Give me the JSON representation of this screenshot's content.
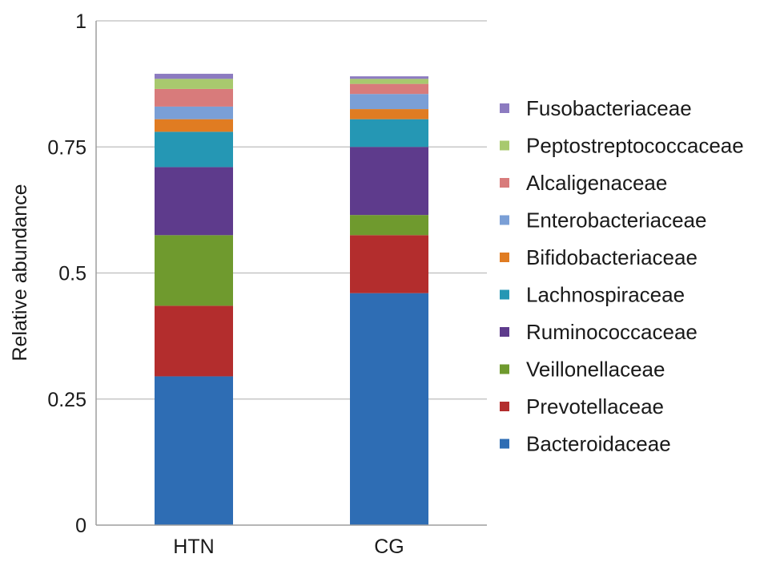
{
  "chart_data": {
    "type": "bar",
    "stacked": true,
    "categories": [
      "HTN",
      "CG"
    ],
    "ylabel": "Relative abundance",
    "xlabel": "",
    "ylim": [
      0,
      1
    ],
    "yticks": [
      "0",
      "0.25",
      "0.5",
      "0.75",
      "1"
    ],
    "ytick_values": [
      0,
      0.25,
      0.5,
      0.75,
      1
    ],
    "grid": true,
    "legend_position": "right",
    "series": [
      {
        "name": "Bacteroidaceae",
        "color": "#2e6db4",
        "values": [
          0.295,
          0.46
        ]
      },
      {
        "name": "Prevotellaceae",
        "color": "#b32d2d",
        "values": [
          0.14,
          0.115
        ]
      },
      {
        "name": "Veillonellaceae",
        "color": "#6f9a2e",
        "values": [
          0.14,
          0.04
        ]
      },
      {
        "name": "Ruminococcaceae",
        "color": "#5e3b8c",
        "values": [
          0.135,
          0.135
        ]
      },
      {
        "name": "Lachnospiraceae",
        "color": "#2597b4",
        "values": [
          0.07,
          0.055
        ]
      },
      {
        "name": "Bifidobacteriaceae",
        "color": "#e07c22",
        "values": [
          0.025,
          0.02
        ]
      },
      {
        "name": "Enterobacteriaceae",
        "color": "#7a9fd6",
        "values": [
          0.025,
          0.03
        ]
      },
      {
        "name": "Alcaligenaceae",
        "color": "#d87b7b",
        "values": [
          0.035,
          0.02
        ]
      },
      {
        "name": "Peptostreptococcaceae",
        "color": "#a8c96e",
        "values": [
          0.02,
          0.01
        ]
      },
      {
        "name": "Fusobacteriaceae",
        "color": "#8c7bc0",
        "values": [
          0.01,
          0.005
        ]
      }
    ]
  }
}
